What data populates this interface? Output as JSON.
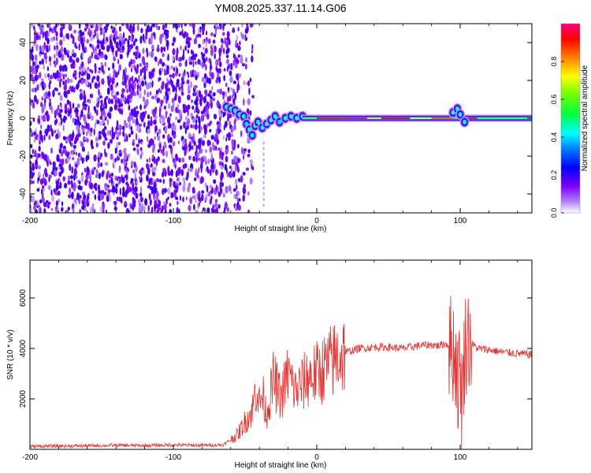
{
  "title": "YM08.2025.337.11.14.G06",
  "chart_data": [
    {
      "type": "heatmap",
      "xlabel": "Height of straight line (km)",
      "ylabel": "Frequency (Hz)",
      "xlim": [
        -200,
        150
      ],
      "ylim": [
        -50,
        50
      ],
      "x_ticks": [
        -200,
        -100,
        0,
        100
      ],
      "y_ticks": [
        -40,
        -20,
        0,
        20,
        40
      ],
      "colorbar": {
        "label": "Normalized spectral amplitude",
        "range": [
          0.0,
          1.0
        ],
        "ticks": [
          0.0,
          0.2,
          0.4,
          0.6,
          0.8
        ],
        "colormap": [
          "#ffffff",
          "#7f00ff",
          "#0000ff",
          "#00ffff",
          "#00ff00",
          "#ffff00",
          "#ff8000",
          "#ff0000",
          "#ff0080"
        ]
      },
      "description_regions": [
        {
          "x_range": [
            -200,
            -57
          ],
          "note": "broadband noise, amplitude 0.0-0.2"
        },
        {
          "x_range": [
            -65,
            -10
          ],
          "note": "irregular signal near 0 to 8 Hz, amplitude 0.2-0.5"
        },
        {
          "x_range": [
            -10,
            150
          ],
          "note": "narrow line at 0 Hz, peak amplitude near 1.0"
        }
      ]
    },
    {
      "type": "line",
      "title": "",
      "xlabel": "Height of straight line (km)",
      "ylabel": "SNR (10 * v/v)",
      "xlim": [
        -200,
        150
      ],
      "ylim": [
        0,
        7500
      ],
      "x_ticks": [
        -200,
        -100,
        0,
        100
      ],
      "y_ticks": [
        2000,
        4000,
        6000
      ],
      "series": [
        {
          "name": "SNR",
          "color": "#e8302c",
          "x": [
            -200,
            -180,
            -160,
            -140,
            -120,
            -100,
            -80,
            -65,
            -55,
            -50,
            -45,
            -42,
            -40,
            -38,
            -35,
            -30,
            -25,
            -20,
            -15,
            -10,
            -5,
            0,
            5,
            10,
            15,
            20,
            30,
            40,
            50,
            60,
            70,
            80,
            85,
            90,
            95,
            97,
            99,
            100,
            101,
            103,
            105,
            108,
            112,
            120,
            130,
            140,
            150
          ],
          "y": [
            120,
            130,
            140,
            160,
            150,
            170,
            160,
            180,
            600,
            1100,
            1500,
            2600,
            1800,
            2200,
            1400,
            2800,
            2000,
            3000,
            2300,
            2600,
            2900,
            3000,
            3200,
            3450,
            3700,
            3850,
            4000,
            4050,
            4050,
            4000,
            4100,
            4150,
            4100,
            4200,
            4000,
            3500,
            2500,
            4000,
            1500,
            3900,
            4500,
            4200,
            4000,
            3950,
            3850,
            3800,
            3750
          ]
        }
      ]
    }
  ]
}
